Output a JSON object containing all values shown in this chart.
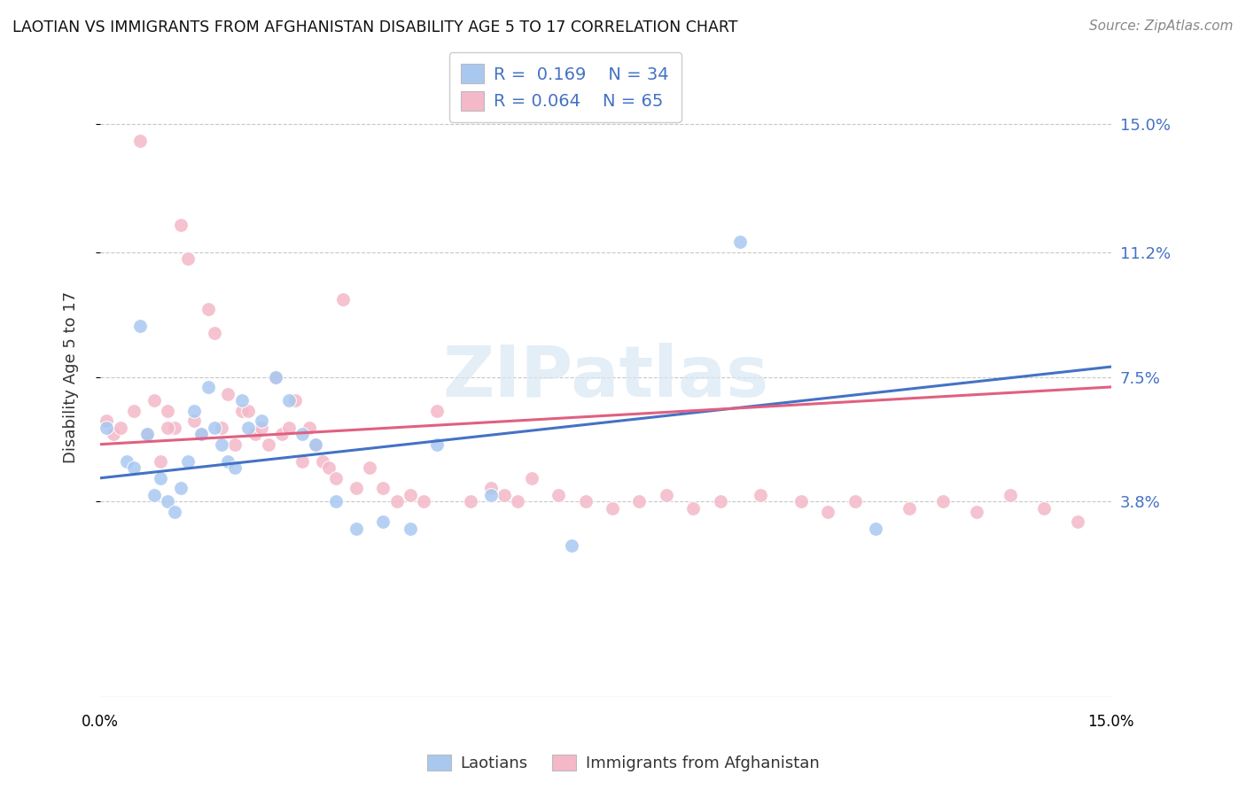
{
  "title": "LAOTIAN VS IMMIGRANTS FROM AFGHANISTAN DISABILITY AGE 5 TO 17 CORRELATION CHART",
  "source": "Source: ZipAtlas.com",
  "ylabel": "Disability Age 5 to 17",
  "ytick_values": [
    0.15,
    0.112,
    0.075,
    0.038
  ],
  "ytick_labels": [
    "15.0%",
    "11.2%",
    "7.5%",
    "3.8%"
  ],
  "xlim": [
    0.0,
    0.15
  ],
  "ylim": [
    -0.02,
    0.17
  ],
  "watermark": "ZIPatlas",
  "color_blue": "#a8c8f0",
  "color_pink": "#f4b8c8",
  "color_blue_line": "#4472c4",
  "color_pink_line": "#e06080",
  "blue_x": [
    0.001,
    0.004,
    0.005,
    0.006,
    0.007,
    0.008,
    0.009,
    0.01,
    0.011,
    0.012,
    0.013,
    0.014,
    0.015,
    0.016,
    0.017,
    0.018,
    0.019,
    0.02,
    0.021,
    0.022,
    0.024,
    0.026,
    0.028,
    0.03,
    0.032,
    0.035,
    0.038,
    0.042,
    0.046,
    0.05,
    0.058,
    0.07,
    0.095,
    0.115
  ],
  "blue_y": [
    0.06,
    0.05,
    0.048,
    0.09,
    0.058,
    0.04,
    0.045,
    0.038,
    0.035,
    0.042,
    0.05,
    0.065,
    0.058,
    0.072,
    0.06,
    0.055,
    0.05,
    0.048,
    0.068,
    0.06,
    0.062,
    0.075,
    0.068,
    0.058,
    0.055,
    0.038,
    0.03,
    0.032,
    0.03,
    0.055,
    0.04,
    0.025,
    0.115,
    0.03
  ],
  "pink_x": [
    0.001,
    0.002,
    0.003,
    0.005,
    0.006,
    0.007,
    0.008,
    0.009,
    0.01,
    0.011,
    0.012,
    0.013,
    0.014,
    0.015,
    0.016,
    0.017,
    0.018,
    0.019,
    0.02,
    0.021,
    0.022,
    0.023,
    0.024,
    0.025,
    0.026,
    0.027,
    0.028,
    0.029,
    0.03,
    0.031,
    0.032,
    0.033,
    0.034,
    0.035,
    0.036,
    0.038,
    0.04,
    0.042,
    0.044,
    0.046,
    0.048,
    0.05,
    0.055,
    0.058,
    0.06,
    0.062,
    0.064,
    0.068,
    0.072,
    0.076,
    0.08,
    0.084,
    0.088,
    0.092,
    0.098,
    0.104,
    0.108,
    0.112,
    0.12,
    0.125,
    0.13,
    0.135,
    0.14,
    0.145,
    0.01
  ],
  "pink_y": [
    0.062,
    0.058,
    0.06,
    0.065,
    0.145,
    0.058,
    0.068,
    0.05,
    0.065,
    0.06,
    0.12,
    0.11,
    0.062,
    0.058,
    0.095,
    0.088,
    0.06,
    0.07,
    0.055,
    0.065,
    0.065,
    0.058,
    0.06,
    0.055,
    0.075,
    0.058,
    0.06,
    0.068,
    0.05,
    0.06,
    0.055,
    0.05,
    0.048,
    0.045,
    0.098,
    0.042,
    0.048,
    0.042,
    0.038,
    0.04,
    0.038,
    0.065,
    0.038,
    0.042,
    0.04,
    0.038,
    0.045,
    0.04,
    0.038,
    0.036,
    0.038,
    0.04,
    0.036,
    0.038,
    0.04,
    0.038,
    0.035,
    0.038,
    0.036,
    0.038,
    0.035,
    0.04,
    0.036,
    0.032,
    0.06
  ]
}
